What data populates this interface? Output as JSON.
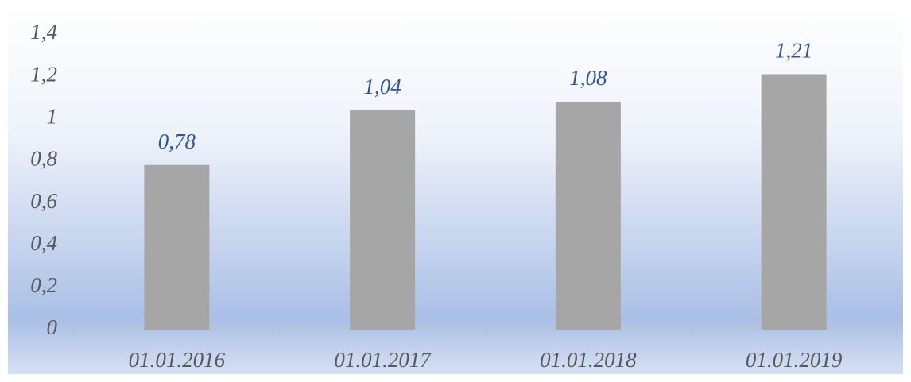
{
  "chart_data": {
    "type": "bar",
    "categories": [
      "01.01.2016",
      "01.01.2017",
      "01.01.2018",
      "01.01.2019"
    ],
    "values": [
      0.78,
      1.04,
      1.08,
      1.21
    ],
    "value_labels": [
      "0,78",
      "1,04",
      "1,08",
      "1,21"
    ],
    "color": "#a6a6a6",
    "ylim": [
      0,
      1.4
    ],
    "yticks": [
      0,
      {
        "value": 0.2,
        "label": "0,2"
      },
      {
        "value": 0.4,
        "label": "0,4"
      },
      {
        "value": 0.6,
        "label": "0,6"
      },
      {
        "value": 0.8,
        "label": "0,8"
      },
      1,
      {
        "value": 1.2,
        "label": "1,2"
      },
      {
        "value": 1.4,
        "label": "1,4"
      }
    ],
    "grid": false
  }
}
